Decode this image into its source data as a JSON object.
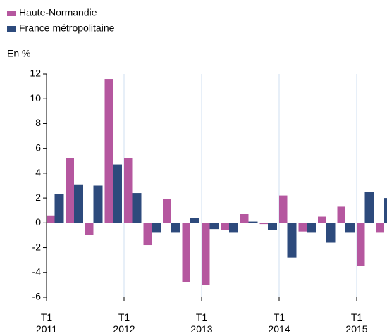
{
  "chart_data": {
    "type": "bar",
    "y_axis_label": "En %",
    "categories": [
      "T1 2011",
      null,
      null,
      null,
      "T1 2012",
      null,
      null,
      null,
      "T1 2013",
      null,
      null,
      null,
      "T1 2014",
      null,
      null,
      null,
      "T1 2015",
      null
    ],
    "series": [
      {
        "name": "Haute-Normandie",
        "color": "#b5579f",
        "values": [
          0.6,
          5.2,
          -1.0,
          11.6,
          5.2,
          -1.8,
          1.9,
          -4.8,
          -5.0,
          -0.6,
          0.7,
          -0.1,
          2.2,
          -0.7,
          0.5,
          1.3,
          -3.5,
          -0.8
        ]
      },
      {
        "name": "France métropolitaine",
        "color": "#2d4a7c",
        "values": [
          2.3,
          3.1,
          3.0,
          4.7,
          2.4,
          -0.8,
          -0.8,
          0.4,
          -0.5,
          -0.8,
          0.1,
          -0.6,
          -2.8,
          -0.8,
          -1.6,
          -0.8,
          2.5,
          2.0
        ]
      }
    ],
    "ylim": [
      -6,
      12
    ],
    "yticks": [
      -6,
      -4,
      -2,
      0,
      2,
      4,
      6,
      8,
      10,
      12
    ],
    "grid": true
  }
}
